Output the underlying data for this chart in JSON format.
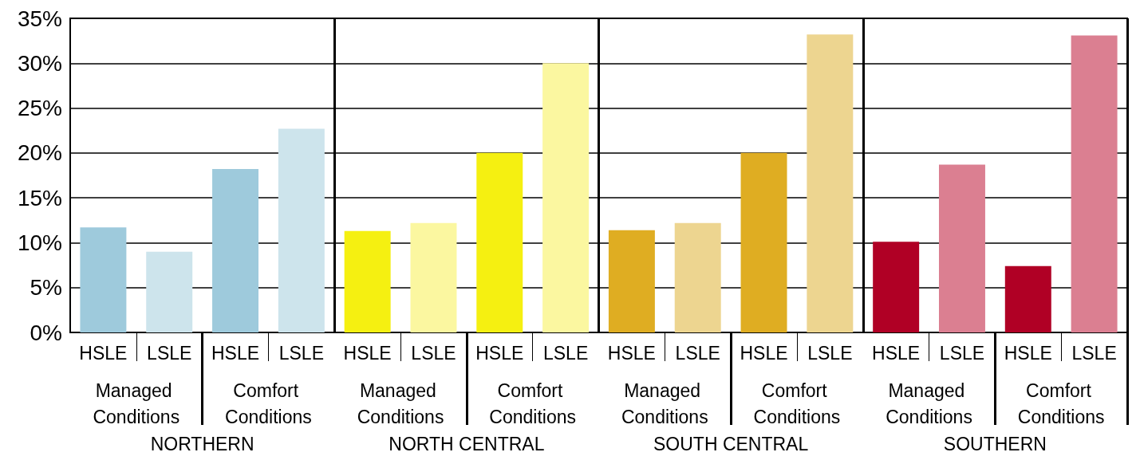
{
  "chart_data": {
    "type": "bar",
    "categories": [
      "HSLE",
      "LSLE",
      "HSLE",
      "LSLE",
      "HSLE",
      "LSLE",
      "HSLE",
      "LSLE",
      "HSLE",
      "LSLE",
      "HSLE",
      "LSLE",
      "HSLE",
      "LSLE",
      "HSLE",
      "LSLE"
    ],
    "values": [
      11.7,
      9.0,
      18.2,
      22.7,
      11.3,
      12.2,
      20.0,
      30.0,
      11.4,
      12.2,
      20.0,
      33.2,
      10.1,
      18.7,
      7.4,
      33.1
    ],
    "colors": [
      "#9ecadc",
      "#cde4ec",
      "#9ecadc",
      "#cde4ec",
      "#f5f011",
      "#fbf7a0",
      "#f5f011",
      "#fbf7a0",
      "#dfad22",
      "#edd590",
      "#dfad22",
      "#edd590",
      "#b00025",
      "#db7f91",
      "#b00025",
      "#db7f91"
    ],
    "ylim": [
      0,
      35
    ],
    "yticks": [
      {
        "value": 0,
        "label": "0%"
      },
      {
        "value": 5,
        "label": "5%"
      },
      {
        "value": 10,
        "label": "10%"
      },
      {
        "value": 15,
        "label": "15%"
      },
      {
        "value": 20,
        "label": "20%"
      },
      {
        "value": 25,
        "label": "25%"
      },
      {
        "value": 30,
        "label": "30%"
      },
      {
        "value": 35,
        "label": "35%"
      }
    ],
    "grid": "y",
    "annotations": [
      "Managed Conditions",
      "Comfort Conditions",
      "Managed Conditions",
      "Comfort Conditions",
      "Managed Conditions",
      "Comfort Conditions",
      "Managed Conditions",
      "Comfort Conditions",
      "NORTHERN",
      "NORTH CENTRAL",
      "SOUTH CENTRAL",
      "SOUTHERN"
    ]
  }
}
